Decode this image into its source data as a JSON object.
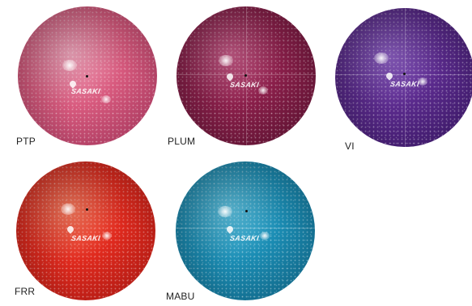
{
  "brand_text": "SASAKI",
  "balls": [
    {
      "code": "PTP",
      "color": "#d85a7e",
      "highlight": "#f2a6bd",
      "shadow": "#9a2f55",
      "icon": "gym-ball-pink"
    },
    {
      "code": "PLUM",
      "color": "#8a1f4a",
      "highlight": "#c45a86",
      "shadow": "#4f0f2a",
      "icon": "gym-ball-plum"
    },
    {
      "code": "VI",
      "color": "#5a2a8c",
      "highlight": "#8c5fc2",
      "shadow": "#32145a",
      "icon": "gym-ball-violet"
    },
    {
      "code": "FRR",
      "color": "#e02a1e",
      "highlight": "#f77a5e",
      "shadow": "#a01510",
      "icon": "gym-ball-red"
    },
    {
      "code": "MABU",
      "color": "#1b8db4",
      "highlight": "#5ec1df",
      "shadow": "#0e5a78",
      "icon": "gym-ball-blue"
    }
  ]
}
